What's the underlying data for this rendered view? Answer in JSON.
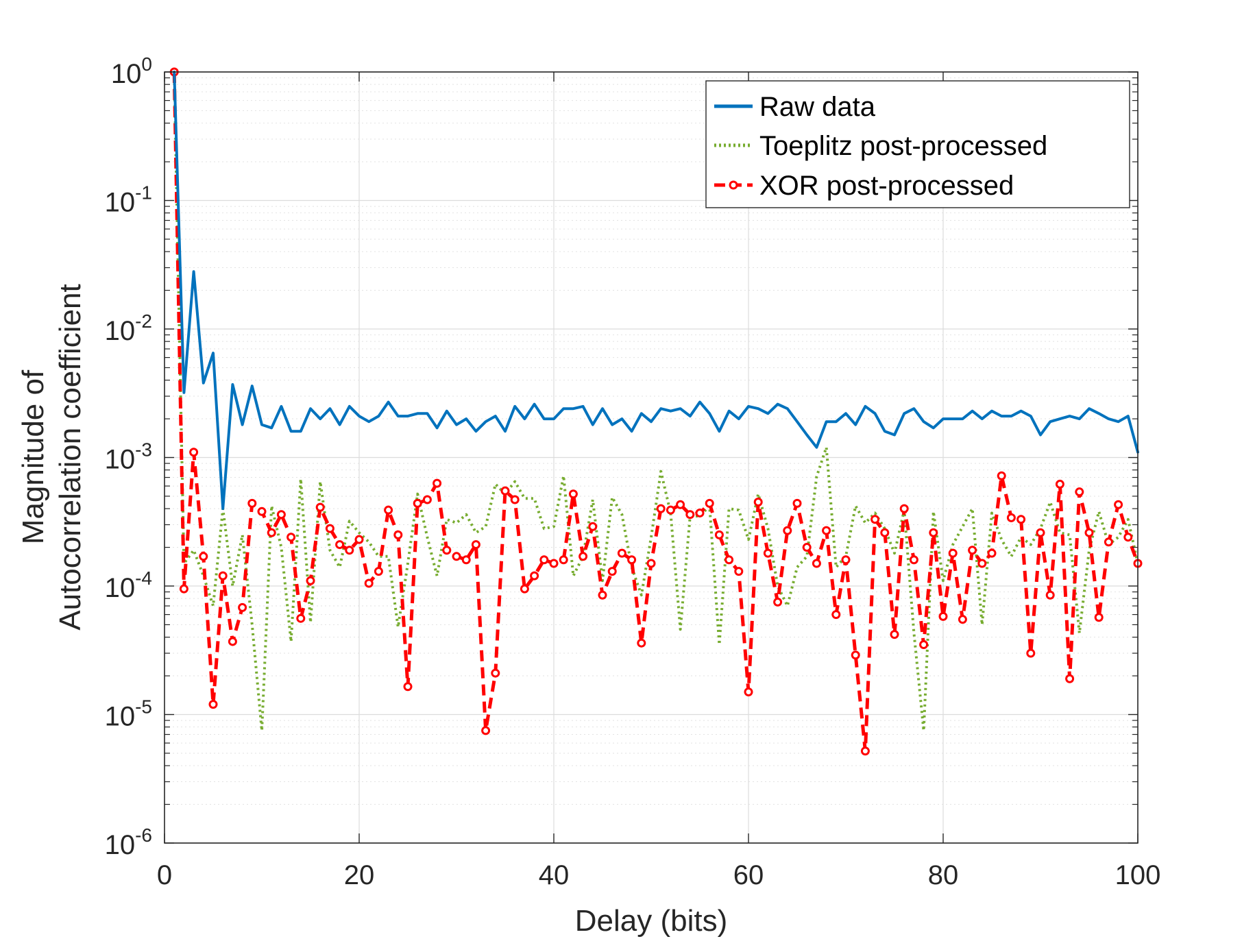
{
  "chart_data": {
    "type": "line",
    "title": "",
    "xlabel": "Delay (bits)",
    "ylabel_lines": [
      "Magnitude of",
      "Autocorrelation coefficient"
    ],
    "xlim": [
      0,
      100
    ],
    "ylim": [
      1e-06,
      1
    ],
    "yscale": "log",
    "grid": true,
    "legend_position": "top-right",
    "x_ticks": [
      0,
      20,
      40,
      60,
      80,
      100
    ],
    "x_tick_labels": [
      "0",
      "20",
      "40",
      "60",
      "80",
      "100"
    ],
    "y_ticks": [
      {
        "value": 1,
        "base": "10",
        "exp": "0"
      },
      {
        "value": 0.1,
        "base": "10",
        "exp": "-1"
      },
      {
        "value": 0.01,
        "base": "10",
        "exp": "-2"
      },
      {
        "value": 0.001,
        "base": "10",
        "exp": "-3"
      },
      {
        "value": 0.0001,
        "base": "10",
        "exp": "-4"
      },
      {
        "value": 1e-05,
        "base": "10",
        "exp": "-5"
      },
      {
        "value": 1e-06,
        "base": "10",
        "exp": "-6"
      }
    ],
    "series": [
      {
        "name": "Raw data",
        "color": "#0072BD",
        "style": "solid",
        "x": [
          1,
          2,
          3,
          4,
          5,
          6,
          7,
          8,
          9,
          10,
          11,
          12,
          13,
          14,
          15,
          16,
          17,
          18,
          19,
          20,
          21,
          22,
          23,
          24,
          25,
          26,
          27,
          28,
          29,
          30,
          31,
          32,
          33,
          34,
          35,
          36,
          37,
          38,
          39,
          40,
          41,
          42,
          43,
          44,
          45,
          46,
          47,
          48,
          49,
          50,
          51,
          52,
          53,
          54,
          55,
          56,
          57,
          58,
          59,
          60,
          61,
          62,
          63,
          64,
          65,
          66,
          67,
          68,
          69,
          70,
          71,
          72,
          73,
          74,
          75,
          76,
          77,
          78,
          79,
          80,
          81,
          82,
          83,
          84,
          85,
          86,
          87,
          88,
          89,
          90,
          91,
          92,
          93,
          94,
          95,
          96,
          97,
          98,
          99,
          100
        ],
        "values": [
          1,
          0.0032,
          0.028,
          0.0038,
          0.0065,
          0.0004,
          0.0037,
          0.0018,
          0.0036,
          0.0018,
          0.0017,
          0.0025,
          0.0016,
          0.0016,
          0.0024,
          0.002,
          0.0024,
          0.0018,
          0.0025,
          0.0021,
          0.0019,
          0.0021,
          0.0027,
          0.0021,
          0.0021,
          0.0022,
          0.0022,
          0.0017,
          0.0023,
          0.0018,
          0.002,
          0.0016,
          0.0019,
          0.0021,
          0.0016,
          0.0025,
          0.002,
          0.0026,
          0.002,
          0.002,
          0.0024,
          0.0024,
          0.0025,
          0.0018,
          0.0024,
          0.0018,
          0.002,
          0.0016,
          0.0022,
          0.0019,
          0.0024,
          0.0023,
          0.0024,
          0.0021,
          0.0027,
          0.0022,
          0.0016,
          0.0023,
          0.002,
          0.0025,
          0.0024,
          0.0022,
          0.0026,
          0.0024,
          0.0019,
          0.0015,
          0.0012,
          0.0019,
          0.0019,
          0.0022,
          0.0018,
          0.0025,
          0.0022,
          0.0016,
          0.0015,
          0.0022,
          0.0024,
          0.0019,
          0.0017,
          0.002,
          0.002,
          0.002,
          0.0023,
          0.002,
          0.0023,
          0.0021,
          0.0021,
          0.0023,
          0.0021,
          0.0015,
          0.0019,
          0.002,
          0.0021,
          0.002,
          0.0024,
          0.0022,
          0.002,
          0.0019,
          0.0021,
          0.0011
        ]
      },
      {
        "name": "Toeplitz post-processed",
        "color": "#77AC30",
        "style": "dotted",
        "x": [
          1,
          2,
          3,
          4,
          5,
          6,
          7,
          8,
          9,
          10,
          11,
          12,
          13,
          14,
          15,
          16,
          17,
          18,
          19,
          20,
          21,
          22,
          23,
          24,
          25,
          26,
          27,
          28,
          29,
          30,
          31,
          32,
          33,
          34,
          35,
          36,
          37,
          38,
          39,
          40,
          41,
          42,
          43,
          44,
          45,
          46,
          47,
          48,
          49,
          50,
          51,
          52,
          53,
          54,
          55,
          56,
          57,
          58,
          59,
          60,
          61,
          62,
          63,
          64,
          65,
          66,
          67,
          68,
          69,
          70,
          71,
          72,
          73,
          74,
          75,
          76,
          77,
          78,
          79,
          80,
          81,
          82,
          83,
          84,
          85,
          86,
          87,
          88,
          89,
          90,
          91,
          92,
          93,
          94,
          95,
          96,
          97,
          98,
          99,
          100
        ],
        "values": [
          1,
          0.00015,
          0.00019,
          0.00012,
          7e-05,
          0.0004,
          0.0001,
          0.00025,
          5e-05,
          7.5e-06,
          0.00042,
          0.0002,
          3.7e-05,
          0.00068,
          5.2e-05,
          0.00065,
          0.00019,
          0.00014,
          0.00032,
          0.00026,
          0.00022,
          0.00017,
          0.00017,
          4.8e-05,
          0.00015,
          0.00052,
          0.00024,
          0.00012,
          0.00033,
          0.00031,
          0.00036,
          0.00026,
          0.00029,
          0.00062,
          0.00052,
          0.00065,
          0.00048,
          0.00048,
          0.00028,
          0.00029,
          0.00072,
          0.00012,
          0.00017,
          0.00047,
          0.00011,
          0.00049,
          0.00036,
          0.00014,
          8.5e-05,
          0.00024,
          0.00078,
          0.00037,
          4.6e-05,
          0.00035,
          0.00035,
          0.00042,
          3.5e-05,
          0.0004,
          0.00039,
          0.00023,
          0.00052,
          0.00028,
          0.0001,
          7e-05,
          0.00014,
          0.00017,
          0.00071,
          0.0012,
          0.00014,
          0.00017,
          0.00042,
          0.00031,
          0.00037,
          0.00028,
          0.00018,
          0.00039,
          4.3e-05,
          7.5e-06,
          0.00038,
          0.00011,
          0.00021,
          0.00029,
          0.0004,
          5e-05,
          0.00037,
          0.00023,
          0.00017,
          0.00024,
          0.00021,
          0.00028,
          0.00045,
          0.00026,
          0.00025,
          4.3e-05,
          0.00019,
          0.00038,
          0.00021,
          0.00024,
          0.00033,
          0.00015
        ]
      },
      {
        "name": "XOR post-processed",
        "color": "#FF0000",
        "style": "dashed-markers",
        "x": [
          1,
          2,
          3,
          4,
          5,
          6,
          7,
          8,
          9,
          10,
          11,
          12,
          13,
          14,
          15,
          16,
          17,
          18,
          19,
          20,
          21,
          22,
          23,
          24,
          25,
          26,
          27,
          28,
          29,
          30,
          31,
          32,
          33,
          34,
          35,
          36,
          37,
          38,
          39,
          40,
          41,
          42,
          43,
          44,
          45,
          46,
          47,
          48,
          49,
          50,
          51,
          52,
          53,
          54,
          55,
          56,
          57,
          58,
          59,
          60,
          61,
          62,
          63,
          64,
          65,
          66,
          67,
          68,
          69,
          70,
          71,
          72,
          73,
          74,
          75,
          76,
          77,
          78,
          79,
          80,
          81,
          82,
          83,
          84,
          85,
          86,
          87,
          88,
          89,
          90,
          91,
          92,
          93,
          94,
          95,
          96,
          97,
          98,
          99,
          100
        ],
        "values": [
          1,
          9.5e-05,
          0.0011,
          0.00017,
          1.2e-05,
          0.00012,
          3.7e-05,
          6.8e-05,
          0.00044,
          0.00038,
          0.00026,
          0.00036,
          0.00024,
          5.6e-05,
          0.00011,
          0.00041,
          0.00028,
          0.00021,
          0.00019,
          0.00023,
          0.000105,
          0.00013,
          0.00039,
          0.00025,
          1.65e-05,
          0.00044,
          0.00047,
          0.00063,
          0.00019,
          0.00017,
          0.00016,
          0.00021,
          7.5e-06,
          2.1e-05,
          0.00055,
          0.00047,
          9.5e-05,
          0.00012,
          0.00016,
          0.00015,
          0.00016,
          0.00052,
          0.00017,
          0.00029,
          8.5e-05,
          0.00013,
          0.00018,
          0.00016,
          3.6e-05,
          0.00015,
          0.0004,
          0.00039,
          0.00043,
          0.00036,
          0.00037,
          0.00044,
          0.00025,
          0.00016,
          0.00013,
          1.5e-05,
          0.00045,
          0.00018,
          7.5e-05,
          0.00027,
          0.00044,
          0.0002,
          0.00015,
          0.00027,
          6e-05,
          0.00016,
          2.9e-05,
          5.2e-06,
          0.00033,
          0.00026,
          4.2e-05,
          0.0004,
          0.00016,
          3.5e-05,
          0.00026,
          5.8e-05,
          0.00018,
          5.5e-05,
          0.00019,
          0.00015,
          0.00018,
          0.00072,
          0.00034,
          0.00033,
          3e-05,
          0.00026,
          8.5e-05,
          0.00062,
          1.9e-05,
          0.00054,
          0.00026,
          5.7e-05,
          0.00022,
          0.00043,
          0.00024,
          0.00015
        ]
      }
    ]
  }
}
